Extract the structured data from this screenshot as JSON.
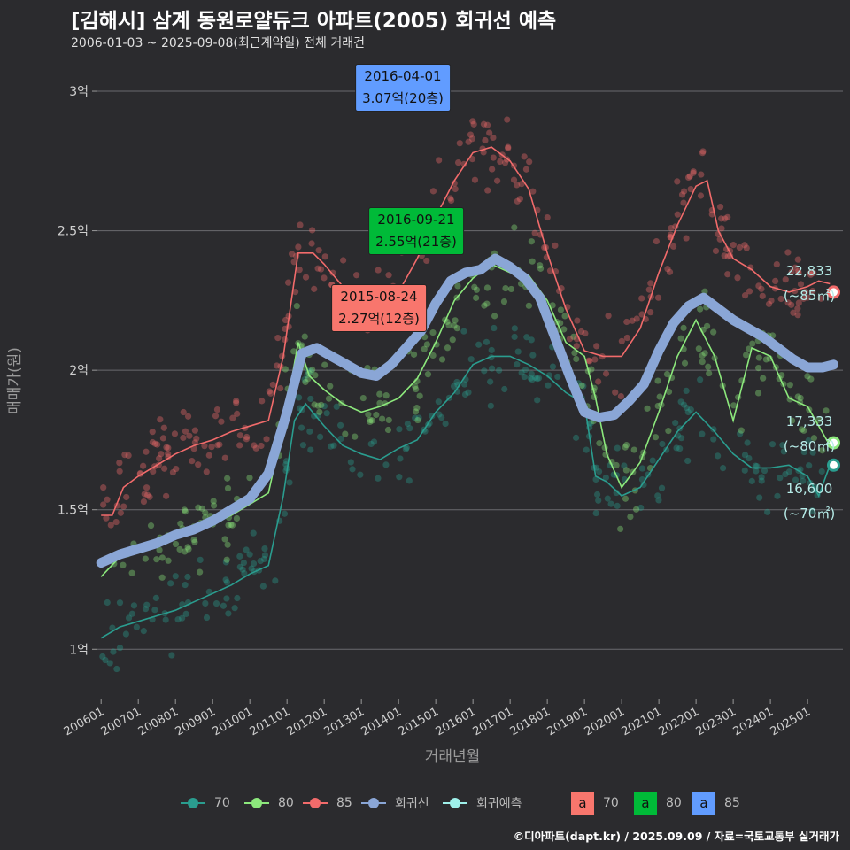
{
  "title": "[김해시] 삼계 동원로얄듀크 아파트(2005) 회귀선 예측",
  "subtitle": "2006-01-03 ~ 2025-09-08(최근계약일) 전체 거래건",
  "footer": "©디아파트(dapt.kr) / 2025.09.09 / 자료=국토교통부 실거래가",
  "colors": {
    "s70": "#2a9d8f",
    "s80": "#8ce87c",
    "s85": "#f26b6b",
    "regression": "#8aa6d6",
    "forecast": "#9ef0ea",
    "ann70": "#f8766d",
    "ann80": "#00ba38",
    "ann85": "#619cff"
  },
  "chart_data": {
    "type": "line",
    "xlabel": "거래년월",
    "ylabel": "매매가(원)",
    "x_tick_labels": [
      "200601",
      "200701",
      "200801",
      "200901",
      "201001",
      "201101",
      "201201",
      "201301",
      "201401",
      "201501",
      "201601",
      "201701",
      "201801",
      "201901",
      "202001",
      "202101",
      "202201",
      "202301",
      "202401",
      "202501"
    ],
    "y_ticks": [
      1.0,
      1.5,
      2.0,
      2.5,
      3.0
    ],
    "y_tick_labels": [
      "1억",
      "1.5억",
      "2억",
      "2.5억",
      "3억"
    ],
    "ylim": [
      0.82,
      3.2
    ],
    "xlim": [
      2005.9,
      2025.95
    ],
    "grid": true,
    "legend_position": "bottom",
    "series": [
      {
        "name": "70",
        "x": [
          2006.0,
          2006.5,
          2007.0,
          2007.5,
          2008.0,
          2008.5,
          2009.0,
          2009.5,
          2010.0,
          2010.5,
          2010.9,
          2011.2,
          2011.5,
          2012.0,
          2012.5,
          2013.0,
          2013.5,
          2014.0,
          2014.5,
          2015.0,
          2015.5,
          2016.0,
          2016.5,
          2017.0,
          2017.5,
          2018.0,
          2018.5,
          2019.0,
          2019.3,
          2019.6,
          2020.0,
          2020.5,
          2021.0,
          2021.5,
          2022.0,
          2022.5,
          2023.0,
          2023.5,
          2024.0,
          2024.5,
          2025.0,
          2025.3,
          2025.6
        ],
        "y": [
          1.04,
          1.08,
          1.1,
          1.12,
          1.14,
          1.17,
          1.2,
          1.23,
          1.27,
          1.3,
          1.55,
          1.82,
          1.88,
          1.8,
          1.73,
          1.7,
          1.68,
          1.72,
          1.75,
          1.85,
          1.92,
          2.02,
          2.05,
          2.05,
          2.02,
          1.98,
          1.92,
          1.88,
          1.62,
          1.6,
          1.55,
          1.58,
          1.68,
          1.78,
          1.85,
          1.78,
          1.7,
          1.65,
          1.65,
          1.66,
          1.62,
          1.55,
          1.66
        ]
      },
      {
        "name": "80",
        "x": [
          2006.0,
          2006.5,
          2007.0,
          2007.5,
          2008.0,
          2008.5,
          2009.0,
          2009.5,
          2010.0,
          2010.5,
          2010.9,
          2011.3,
          2011.6,
          2012.0,
          2012.5,
          2013.0,
          2013.5,
          2014.0,
          2014.5,
          2015.0,
          2015.5,
          2016.0,
          2016.5,
          2017.0,
          2017.5,
          2018.0,
          2018.5,
          2019.0,
          2019.3,
          2019.6,
          2020.0,
          2020.5,
          2021.0,
          2021.5,
          2022.0,
          2022.5,
          2023.0,
          2023.5,
          2024.0,
          2024.5,
          2025.0,
          2025.3,
          2025.6
        ],
        "y": [
          1.26,
          1.33,
          1.36,
          1.38,
          1.4,
          1.42,
          1.45,
          1.48,
          1.52,
          1.56,
          1.8,
          2.1,
          1.98,
          1.93,
          1.88,
          1.85,
          1.87,
          1.9,
          1.97,
          2.1,
          2.25,
          2.33,
          2.38,
          2.35,
          2.34,
          2.25,
          2.1,
          2.05,
          1.9,
          1.7,
          1.58,
          1.67,
          1.85,
          2.05,
          2.18,
          2.05,
          1.82,
          2.08,
          2.05,
          1.9,
          1.87,
          1.8,
          1.73
        ]
      },
      {
        "name": "85",
        "x": [
          2006.0,
          2006.3,
          2006.6,
          2007.0,
          2007.5,
          2008.0,
          2008.5,
          2009.0,
          2009.5,
          2010.0,
          2010.5,
          2010.9,
          2011.3,
          2011.7,
          2012.0,
          2012.5,
          2013.0,
          2013.5,
          2014.0,
          2014.5,
          2015.0,
          2015.5,
          2016.0,
          2016.5,
          2017.0,
          2017.5,
          2018.0,
          2018.5,
          2019.0,
          2019.5,
          2020.0,
          2020.5,
          2021.0,
          2021.5,
          2022.0,
          2022.3,
          2022.6,
          2023.0,
          2023.5,
          2024.0,
          2024.5,
          2025.0,
          2025.3,
          2025.6
        ],
        "y": [
          1.48,
          1.48,
          1.58,
          1.62,
          1.66,
          1.7,
          1.73,
          1.75,
          1.78,
          1.8,
          1.82,
          2.05,
          2.42,
          2.42,
          2.38,
          2.3,
          2.25,
          2.22,
          2.28,
          2.4,
          2.55,
          2.68,
          2.78,
          2.8,
          2.75,
          2.65,
          2.42,
          2.22,
          2.07,
          2.05,
          2.05,
          2.15,
          2.35,
          2.52,
          2.66,
          2.68,
          2.5,
          2.4,
          2.36,
          2.3,
          2.28,
          2.3,
          2.32,
          2.31
        ]
      },
      {
        "name": "회귀선",
        "x": [
          2006.0,
          2006.5,
          2007.0,
          2007.5,
          2008.0,
          2008.5,
          2009.0,
          2009.5,
          2010.0,
          2010.5,
          2011.0,
          2011.4,
          2011.8,
          2012.2,
          2012.6,
          2013.0,
          2013.4,
          2013.8,
          2014.2,
          2014.6,
          2015.0,
          2015.4,
          2015.8,
          2016.2,
          2016.6,
          2017.0,
          2017.4,
          2017.8,
          2018.2,
          2018.6,
          2019.0,
          2019.4,
          2019.8,
          2020.2,
          2020.6,
          2021.0,
          2021.4,
          2021.8,
          2022.2,
          2022.6,
          2023.0,
          2023.4,
          2023.8,
          2024.2,
          2024.6,
          2025.0,
          2025.4,
          2025.7
        ],
        "y": [
          1.31,
          1.34,
          1.36,
          1.38,
          1.41,
          1.43,
          1.46,
          1.5,
          1.54,
          1.63,
          1.85,
          2.06,
          2.08,
          2.05,
          2.02,
          1.99,
          1.98,
          2.02,
          2.08,
          2.14,
          2.24,
          2.32,
          2.35,
          2.36,
          2.4,
          2.37,
          2.33,
          2.26,
          2.12,
          1.98,
          1.85,
          1.83,
          1.84,
          1.89,
          1.95,
          2.07,
          2.17,
          2.23,
          2.26,
          2.22,
          2.18,
          2.15,
          2.12,
          2.08,
          2.04,
          2.01,
          2.01,
          2.02
        ]
      }
    ],
    "forecast_points": [
      {
        "name": "85",
        "x": 2025.7,
        "y": 2.28
      },
      {
        "name": "80",
        "x": 2025.7,
        "y": 1.74
      },
      {
        "name": "70",
        "x": 2025.7,
        "y": 1.66
      }
    ],
    "annotations": [
      {
        "date": "2016-04-01",
        "value": "3.07억(20층)",
        "group": "85"
      },
      {
        "date": "2016-09-21",
        "value": "2.55억(21층)",
        "group": "80"
      },
      {
        "date": "2015-08-24",
        "value": "2.27억(12층)",
        "group": "70"
      }
    ],
    "end_labels": [
      {
        "price": "22,833",
        "area": "(~85㎡)"
      },
      {
        "price": "17,333",
        "area": "(~80㎡)"
      },
      {
        "price": "16,600",
        "area": "(~70㎡)"
      }
    ]
  },
  "legend": {
    "items": [
      {
        "label": "70",
        "type": "line-dot",
        "color": "#2a9d8f"
      },
      {
        "label": "80",
        "type": "line-dot",
        "color": "#8ce87c"
      },
      {
        "label": "85",
        "type": "line-dot",
        "color": "#f26b6b"
      },
      {
        "label": "회귀선",
        "type": "line-dot",
        "color": "#8aa6d6"
      },
      {
        "label": "회귀예측",
        "type": "line-dot",
        "color": "#9ef0ea"
      }
    ],
    "box_items": [
      {
        "glyph": "a",
        "label": "70",
        "color": "#f8766d"
      },
      {
        "glyph": "a",
        "label": "80",
        "color": "#00ba38"
      },
      {
        "glyph": "a",
        "label": "85",
        "color": "#619cff"
      }
    ]
  }
}
